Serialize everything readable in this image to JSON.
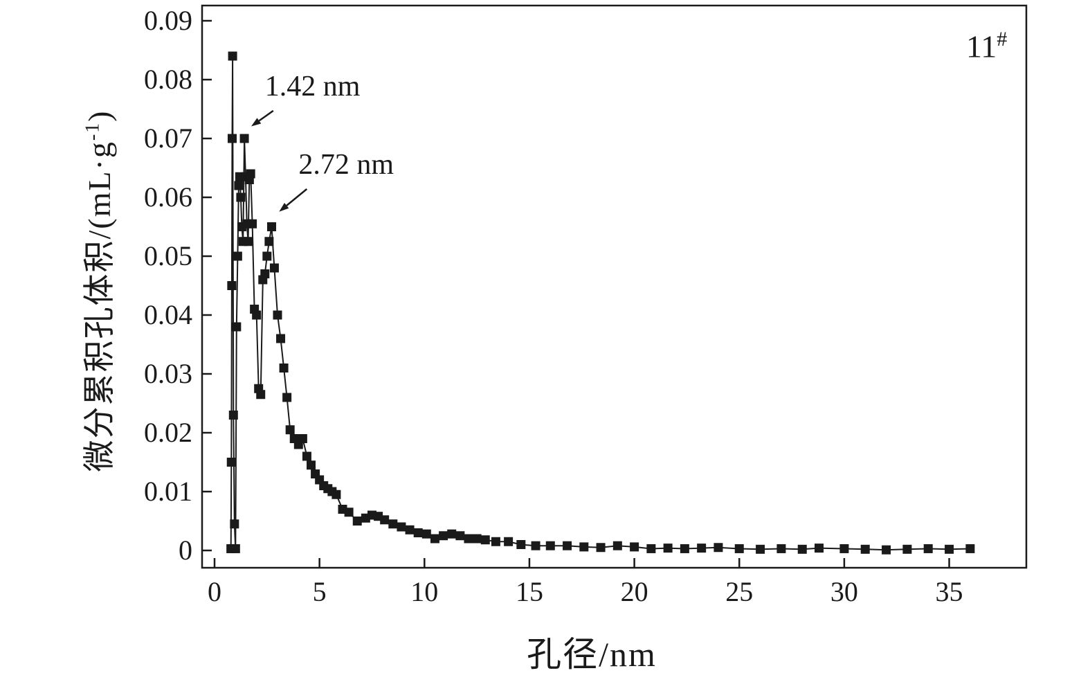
{
  "figure": {
    "corner_label": {
      "base": "11",
      "sup": "#"
    },
    "xlabel": "孔径/nm",
    "ylabel": {
      "pre": "微分累积孔体积/(mL·g",
      "sup": "-1",
      "post": ")"
    }
  },
  "chart_data": {
    "type": "line",
    "title": "",
    "xlabel": "孔径/nm",
    "ylabel": "微分累积孔体积/(mL·g^-1)",
    "xlim": [
      0,
      39
    ],
    "ylim": [
      0,
      0.09
    ],
    "grid": false,
    "legend": "none",
    "marker": "square",
    "color": "#1a1a1a",
    "xticks": [
      0,
      5,
      10,
      15,
      20,
      25,
      30,
      35
    ],
    "xtick_labels": [
      "0",
      "5",
      "10",
      "15",
      "20",
      "25",
      "30",
      "35"
    ],
    "yticks": [
      0,
      0.01,
      0.02,
      0.03,
      0.04,
      0.05,
      0.06,
      0.07,
      0.08,
      0.09
    ],
    "ytick_labels": [
      "0",
      "0.01",
      "0.02",
      "0.03",
      "0.04",
      "0.05",
      "0.06",
      "0.07",
      "0.08",
      "0.09"
    ],
    "annotations": [
      {
        "text": "1.42 nm",
        "target": {
          "x": 1.45,
          "y": 0.071
        },
        "label": {
          "x": 2.4,
          "y": 0.0773
        }
      },
      {
        "text": "2.72 nm",
        "target": {
          "x": 2.78,
          "y": 0.0565
        },
        "label": {
          "x": 4.0,
          "y": 0.064
        }
      }
    ],
    "series": [
      {
        "name": "11#",
        "x": [
          0.78,
          0.8,
          0.82,
          0.84,
          0.86,
          0.9,
          0.95,
          1.0,
          1.05,
          1.1,
          1.15,
          1.2,
          1.25,
          1.3,
          1.36,
          1.42,
          1.48,
          1.54,
          1.6,
          1.66,
          1.72,
          1.8,
          1.9,
          2.0,
          2.1,
          2.2,
          2.3,
          2.4,
          2.5,
          2.6,
          2.72,
          2.85,
          3.0,
          3.15,
          3.3,
          3.45,
          3.6,
          3.8,
          4.0,
          4.2,
          4.4,
          4.6,
          4.8,
          5.0,
          5.2,
          5.4,
          5.6,
          5.8,
          6.1,
          6.4,
          6.8,
          7.2,
          7.5,
          7.8,
          8.1,
          8.5,
          8.9,
          9.3,
          9.7,
          10.1,
          10.5,
          10.9,
          11.3,
          11.7,
          12.1,
          12.5,
          12.9,
          13.4,
          14.0,
          14.6,
          15.3,
          16.0,
          16.8,
          17.6,
          18.4,
          19.2,
          20.0,
          20.8,
          21.6,
          22.4,
          23.2,
          24.0,
          25.0,
          26.0,
          27.0,
          28.0,
          28.8,
          30.0,
          31.0,
          32.0,
          33.0,
          34.0,
          35.0,
          36.0
        ],
        "y": [
          0.0003,
          0.015,
          0.045,
          0.07,
          0.084,
          0.023,
          0.0045,
          0.0003,
          0.038,
          0.05,
          0.062,
          0.0635,
          0.06,
          0.055,
          0.0525,
          0.07,
          0.0635,
          0.0555,
          0.0525,
          0.063,
          0.064,
          0.0555,
          0.041,
          0.04,
          0.0275,
          0.0265,
          0.046,
          0.047,
          0.05,
          0.0525,
          0.055,
          0.048,
          0.04,
          0.036,
          0.031,
          0.026,
          0.0205,
          0.019,
          0.018,
          0.019,
          0.016,
          0.0145,
          0.013,
          0.012,
          0.011,
          0.0105,
          0.01,
          0.0095,
          0.007,
          0.0065,
          0.005,
          0.0055,
          0.006,
          0.0058,
          0.0052,
          0.0045,
          0.004,
          0.0035,
          0.003,
          0.0028,
          0.002,
          0.0025,
          0.0028,
          0.0025,
          0.002,
          0.002,
          0.0018,
          0.0015,
          0.0015,
          0.001,
          0.0008,
          0.0008,
          0.0008,
          0.0006,
          0.0005,
          0.0008,
          0.0006,
          0.0003,
          0.0004,
          0.0003,
          0.0004,
          0.0005,
          0.0003,
          0.0002,
          0.0003,
          0.0002,
          0.0004,
          0.0003,
          0.0002,
          0.0001,
          0.0002,
          0.0003,
          0.0002,
          0.0003
        ]
      }
    ]
  }
}
